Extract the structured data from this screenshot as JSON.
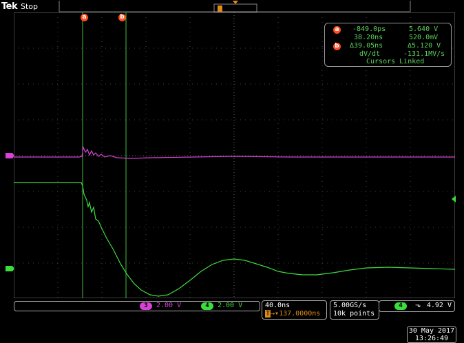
{
  "header": {
    "brand": "Tek",
    "state": "Stop"
  },
  "cursors": {
    "a_label": "a",
    "b_label": "b",
    "a_time": "-849.0ps",
    "a_volt": "5.640 V",
    "b_time": "38.20ns",
    "b_volt": "520.0mV",
    "delta_time": "Δ39.05ns",
    "delta_volt": "Δ5.120 V",
    "dvdt_label": "dV/dt",
    "dvdt_value": "-131.1MV/s",
    "linked": "Cursors Linked"
  },
  "channels": {
    "ch3_num": "3",
    "ch3_scale": "2.00 V",
    "ch4_num": "4",
    "ch4_scale": "2.00 V"
  },
  "timebase": {
    "scale": "40.0ns",
    "position": "137.0000ns"
  },
  "acquisition": {
    "rate": "5.00GS/s",
    "points": "10k points"
  },
  "trigger": {
    "channel": "4",
    "level": "4.92 V"
  },
  "datetime": {
    "date": "30 May 2017",
    "time": "13:26:49"
  },
  "colors": {
    "ch3": "#d642d6",
    "ch4": "#3ddc3d",
    "cursor": "#3fbf3f",
    "badge": "#ff4d1f"
  }
}
